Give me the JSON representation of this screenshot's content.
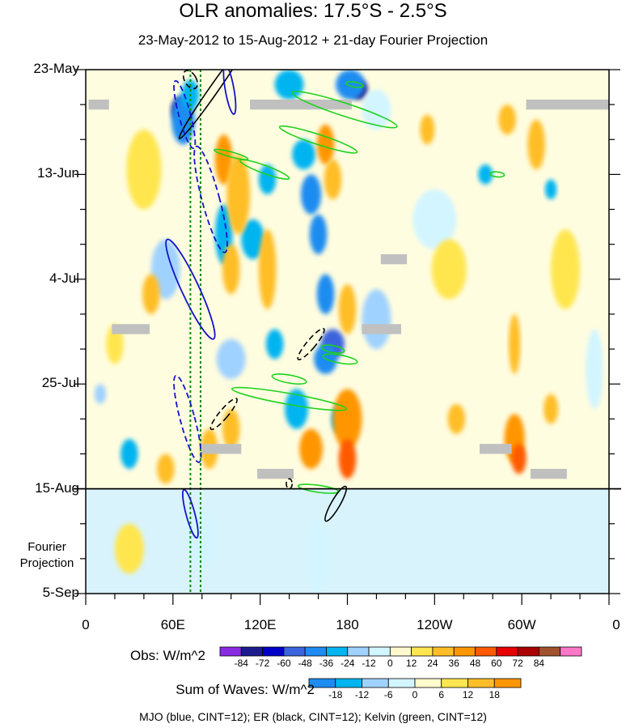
{
  "chart_data": {
    "type": "heatmap",
    "title": "OLR anomalies: 17.5°S - 2.5°S",
    "subtitle": "23-May-2012 to 15-Aug-2012 + 21-day Fourier Projection",
    "y_tick_labels": [
      "23-May",
      "13-Jun",
      "4-Jul",
      "25-Jul",
      "15-Aug",
      "5-Sep"
    ],
    "y_days": [
      0,
      21,
      42,
      63,
      84,
      105
    ],
    "x_tick_labels": [
      "0",
      "60E",
      "120E",
      "180",
      "120W",
      "60W",
      "0"
    ],
    "x_lon": [
      0,
      60,
      120,
      180,
      240,
      300,
      360
    ],
    "projection_start_day": 84,
    "projection_label": [
      "Fourier",
      "Projection"
    ],
    "obs_colorbar": {
      "label": "Obs: W/m^2",
      "levels": [
        -84,
        -72,
        -60,
        -48,
        -36,
        -24,
        -12,
        0,
        12,
        24,
        36,
        48,
        60,
        72,
        84
      ],
      "colors": [
        "#8a2be2",
        "#1c1c8c",
        "#0000c8",
        "#3c64dc",
        "#1e8cf0",
        "#00b4f0",
        "#a0d2ff",
        "#d2f5ff",
        "#fffacd",
        "#ffe650",
        "#ffbe28",
        "#ff9600",
        "#ff5a00",
        "#e60000",
        "#aa0000",
        "#a0522d",
        "#ff78c8"
      ]
    },
    "waves_colorbar": {
      "label": "Sum of Waves: W/m^2",
      "levels": [
        -18,
        -12,
        -6,
        0,
        6,
        12,
        18
      ],
      "colors": [
        "#1e8cf0",
        "#00b4f0",
        "#a0d2ff",
        "#d2f5ff",
        "#fffacd",
        "#ffe650",
        "#ffbe28",
        "#ff9600"
      ]
    },
    "legend_text": "MJO (blue, CINT=12); ER (black, CINT=12); Kelvin (green, CINT=12)",
    "contour_colors": {
      "mjo": "#1414c8",
      "er": "#000000",
      "kelvin": "#1ed21e"
    },
    "reference_lines_lon": [
      72,
      79
    ],
    "anomaly_blobs": [
      {
        "lon": 65,
        "day": 8,
        "rlon": 6,
        "rday": 2.5,
        "value": -84
      },
      {
        "lon": 67,
        "day": 10,
        "rlon": 8,
        "rday": 5,
        "value": -48
      },
      {
        "lon": 72,
        "day": 5,
        "rlon": 6,
        "rday": 3,
        "value": -36
      },
      {
        "lon": 188,
        "day": 4,
        "rlon": 6,
        "rday": 2,
        "value": -84
      },
      {
        "lon": 182,
        "day": 3,
        "rlon": 10,
        "rday": 3,
        "value": -48
      },
      {
        "lon": 140,
        "day": 3,
        "rlon": 10,
        "rday": 3,
        "value": -36
      },
      {
        "lon": 150,
        "day": 17,
        "rlon": 8,
        "rday": 3,
        "value": -36
      },
      {
        "lon": 155,
        "day": 25,
        "rlon": 7,
        "rday": 4,
        "value": -48
      },
      {
        "lon": 160,
        "day": 33,
        "rlon": 6,
        "rday": 4,
        "value": -48
      },
      {
        "lon": 165,
        "day": 45,
        "rlon": 6,
        "rday": 4,
        "value": -48
      },
      {
        "lon": 170,
        "day": 55,
        "rlon": 8,
        "rday": 3,
        "value": -60
      },
      {
        "lon": 165,
        "day": 58,
        "rlon": 8,
        "rday": 3,
        "value": -48
      },
      {
        "lon": 115,
        "day": 34,
        "rlon": 8,
        "rday": 4,
        "value": -36
      },
      {
        "lon": 95,
        "day": 33,
        "rlon": 6,
        "rday": 6,
        "value": -36
      },
      {
        "lon": 125,
        "day": 22,
        "rlon": 6,
        "rday": 3,
        "value": -36
      },
      {
        "lon": 130,
        "day": 55,
        "rlon": 6,
        "rday": 3,
        "value": -36
      },
      {
        "lon": 145,
        "day": 68,
        "rlon": 8,
        "rday": 4,
        "value": -36
      },
      {
        "lon": 175,
        "day": 70,
        "rlon": 6,
        "rday": 3,
        "value": -36
      },
      {
        "lon": 275,
        "day": 21,
        "rlon": 5,
        "rday": 2,
        "value": -36
      },
      {
        "lon": 320,
        "day": 24,
        "rlon": 4,
        "rday": 2,
        "value": -36
      },
      {
        "lon": 30,
        "day": 77,
        "rlon": 6,
        "rday": 3,
        "value": -36
      },
      {
        "lon": 10,
        "day": 65,
        "rlon": 4,
        "rday": 2,
        "value": -24
      },
      {
        "lon": 200,
        "day": 8,
        "rlon": 10,
        "rday": 4,
        "value": -12
      },
      {
        "lon": 240,
        "day": 30,
        "rlon": 15,
        "rday": 6,
        "value": -12
      },
      {
        "lon": 350,
        "day": 60,
        "rlon": 6,
        "rday": 8,
        "value": -12
      },
      {
        "lon": 55,
        "day": 40,
        "rlon": 10,
        "rday": 6,
        "value": -24
      },
      {
        "lon": 200,
        "day": 50,
        "rlon": 10,
        "rday": 6,
        "value": -24
      },
      {
        "lon": 100,
        "day": 58,
        "rlon": 10,
        "rday": 4,
        "value": -24
      },
      {
        "lon": 95,
        "day": 18,
        "rlon": 6,
        "rday": 5,
        "value": 36
      },
      {
        "lon": 105,
        "day": 25,
        "rlon": 8,
        "rday": 8,
        "value": 24
      },
      {
        "lon": 100,
        "day": 40,
        "rlon": 6,
        "rday": 5,
        "value": 24
      },
      {
        "lon": 125,
        "day": 40,
        "rlon": 6,
        "rday": 8,
        "value": 24
      },
      {
        "lon": 165,
        "day": 15,
        "rlon": 6,
        "rday": 4,
        "value": 36
      },
      {
        "lon": 170,
        "day": 22,
        "rlon": 6,
        "rday": 4,
        "value": 24
      },
      {
        "lon": 180,
        "day": 48,
        "rlon": 6,
        "rday": 5,
        "value": 24
      },
      {
        "lon": 180,
        "day": 70,
        "rlon": 10,
        "rday": 6,
        "value": 36
      },
      {
        "lon": 180,
        "day": 78,
        "rlon": 6,
        "rday": 4,
        "value": 48
      },
      {
        "lon": 155,
        "day": 76,
        "rlon": 8,
        "rday": 4,
        "value": 36
      },
      {
        "lon": 85,
        "day": 76,
        "rlon": 6,
        "rday": 4,
        "value": 24
      },
      {
        "lon": 55,
        "day": 80,
        "rlon": 6,
        "rday": 3,
        "value": 24
      },
      {
        "lon": 100,
        "day": 72,
        "rlon": 6,
        "rday": 4,
        "value": 24
      },
      {
        "lon": 295,
        "day": 74,
        "rlon": 7,
        "rday": 5,
        "value": 36
      },
      {
        "lon": 298,
        "day": 78,
        "rlon": 5,
        "rday": 3,
        "value": 48
      },
      {
        "lon": 290,
        "day": 10,
        "rlon": 6,
        "rday": 3,
        "value": 24
      },
      {
        "lon": 310,
        "day": 15,
        "rlon": 6,
        "rday": 5,
        "value": 24
      },
      {
        "lon": 295,
        "day": 55,
        "rlon": 4,
        "rday": 6,
        "value": 24
      },
      {
        "lon": 255,
        "day": 70,
        "rlon": 6,
        "rday": 3,
        "value": 24
      },
      {
        "lon": 235,
        "day": 12,
        "rlon": 5,
        "rday": 3,
        "value": 24
      },
      {
        "lon": 320,
        "day": 68,
        "rlon": 5,
        "rday": 3,
        "value": 24
      },
      {
        "lon": 45,
        "day": 45,
        "rlon": 6,
        "rday": 4,
        "value": 24
      },
      {
        "lon": 20,
        "day": 55,
        "rlon": 6,
        "rday": 4,
        "value": 12
      },
      {
        "lon": 250,
        "day": 40,
        "rlon": 12,
        "rday": 6,
        "value": 12
      },
      {
        "lon": 330,
        "day": 40,
        "rlon": 10,
        "rday": 8,
        "value": 12
      },
      {
        "lon": 40,
        "day": 20,
        "rlon": 12,
        "rday": 8,
        "value": 12
      },
      {
        "lon": 80,
        "day": 94,
        "rlon": 10,
        "rday": 6,
        "value": -12
      },
      {
        "lon": 160,
        "day": 98,
        "rlon": 8,
        "rday": 8,
        "value": -12
      },
      {
        "lon": 30,
        "day": 96,
        "rlon": 10,
        "rday": 5,
        "value": 12
      }
    ],
    "mjo_contours": [
      {
        "lon": 68,
        "day": 9,
        "rlon": 4,
        "rday": 7,
        "rot": -15,
        "dashed": true
      },
      {
        "lon": 99,
        "day": 4,
        "rlon": 3,
        "rday": 5,
        "rot": -10,
        "dashed": false
      },
      {
        "lon": 86,
        "day": 26,
        "rlon": 6,
        "rday": 11,
        "rot": -15,
        "dashed": true
      },
      {
        "lon": 72,
        "day": 44,
        "rlon": 6,
        "rday": 11,
        "rot": -25,
        "dashed": false
      },
      {
        "lon": 70,
        "day": 70,
        "rlon": 5,
        "rday": 9,
        "rot": -15,
        "dashed": true
      },
      {
        "lon": 72,
        "day": 89,
        "rlon": 3,
        "rday": 5,
        "rot": -15,
        "dashed": false
      }
    ],
    "er_contours": [
      {
        "lon": 72,
        "day": 2,
        "rlon": 4,
        "rday": 2,
        "rot": -30,
        "dashed": true
      },
      {
        "lon": 88,
        "day": 4,
        "rlon": 3,
        "rday": 12,
        "rot": 35,
        "dashed": false
      },
      {
        "lon": 155,
        "day": 55,
        "rlon": 3,
        "rday": 4,
        "rot": 40,
        "dashed": true
      },
      {
        "lon": 95,
        "day": 69,
        "rlon": 3,
        "rday": 4,
        "rot": 40,
        "dashed": true
      },
      {
        "lon": 140,
        "day": 83,
        "rlon": 2,
        "rday": 1,
        "rot": 0,
        "dashed": true
      },
      {
        "lon": 172,
        "day": 87,
        "rlon": 3,
        "rday": 4,
        "rot": 30,
        "dashed": false
      }
    ],
    "kelvin_contours": [
      {
        "lon": 185,
        "day": 3,
        "rlon": 6,
        "rday": 0.5,
        "rot": 10
      },
      {
        "lon": 178,
        "day": 8,
        "rlon": 38,
        "rday": 1.3,
        "rot": 18
      },
      {
        "lon": 160,
        "day": 14,
        "rlon": 28,
        "rday": 1.0,
        "rot": 18
      },
      {
        "lon": 100,
        "day": 17,
        "rlon": 12,
        "rday": 0.5,
        "rot": 15
      },
      {
        "lon": 123,
        "day": 20,
        "rlon": 18,
        "rday": 0.8,
        "rot": 20
      },
      {
        "lon": 283,
        "day": 21,
        "rlon": 5,
        "rday": 0.5,
        "rot": 5
      },
      {
        "lon": 170,
        "day": 56,
        "rlon": 8,
        "rday": 0.7,
        "rot": 10
      },
      {
        "lon": 175,
        "day": 58,
        "rlon": 12,
        "rday": 0.8,
        "rot": 10
      },
      {
        "lon": 140,
        "day": 62,
        "rlon": 12,
        "rday": 0.8,
        "rot": 10
      },
      {
        "lon": 140,
        "day": 66,
        "rlon": 40,
        "rday": 1.1,
        "rot": 10
      },
      {
        "lon": 160,
        "day": 84,
        "rlon": 14,
        "rday": 0.7,
        "rot": 8
      }
    ],
    "missing_data_patches": [
      {
        "lon": 2,
        "day": 7,
        "wlon": 14,
        "wday": 2
      },
      {
        "lon": 113,
        "day": 7,
        "wlon": 70,
        "wday": 2
      },
      {
        "lon": 303,
        "day": 7,
        "wlon": 57,
        "wday": 2
      },
      {
        "lon": 203,
        "day": 38,
        "wlon": 18,
        "wday": 2
      },
      {
        "lon": 18,
        "day": 52,
        "wlon": 26,
        "wday": 2
      },
      {
        "lon": 190,
        "day": 52,
        "wlon": 27,
        "wday": 2
      },
      {
        "lon": 80,
        "day": 76,
        "wlon": 27,
        "wday": 2
      },
      {
        "lon": 271,
        "day": 76,
        "wlon": 22,
        "wday": 2
      },
      {
        "lon": 118,
        "day": 81,
        "wlon": 25,
        "wday": 2
      },
      {
        "lon": 306,
        "day": 81,
        "wlon": 25,
        "wday": 2
      }
    ]
  }
}
